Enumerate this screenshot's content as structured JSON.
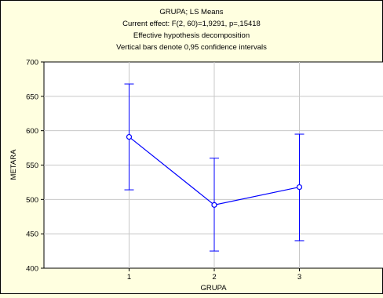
{
  "chart_data": {
    "type": "line",
    "title_lines": [
      "GRUPA; LS Means",
      "Current effect: F(2, 60)=1,9291, p=,15418",
      "Effective hypothesis decomposition",
      "Vertical bars denote 0,95 confidence intervals"
    ],
    "xlabel": "GRUPA",
    "ylabel": "METARA",
    "categories": [
      "1",
      "2",
      "3"
    ],
    "x_range": [
      0,
      4
    ],
    "ylim": [
      400,
      700
    ],
    "yticks": [
      400,
      450,
      500,
      550,
      600,
      650,
      700
    ],
    "ytick_labels": [
      "400",
      "450",
      "500",
      "550",
      "600",
      "650",
      "700"
    ],
    "grid": true,
    "series": [
      {
        "values": [
          591,
          492,
          518
        ],
        "ci_lower": [
          514,
          425,
          440
        ],
        "ci_upper": [
          668,
          560,
          595
        ]
      }
    ],
    "colors": {
      "background": "#FFFFE0",
      "plot_area": "#FFFFFF",
      "series": "#0000FF",
      "grid": "#C8C8C8",
      "axis": "#000000"
    }
  }
}
